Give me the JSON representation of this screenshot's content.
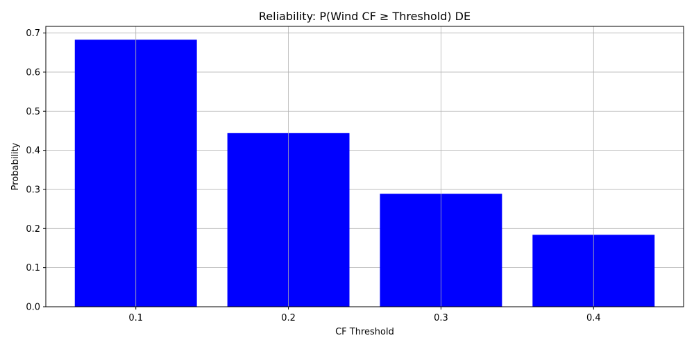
{
  "chart_data": {
    "type": "bar",
    "title": "Reliability: P(Wind CF ≥ Threshold) DE",
    "xlabel": "CF Threshold",
    "ylabel": "Probability",
    "categories": [
      "0.1",
      "0.2",
      "0.3",
      "0.4"
    ],
    "values": [
      0.683,
      0.444,
      0.289,
      0.184
    ],
    "ylim": [
      0,
      0.717
    ],
    "yticks": [
      "0.0",
      "0.1",
      "0.2",
      "0.3",
      "0.4",
      "0.5",
      "0.6",
      "0.7"
    ],
    "grid": true,
    "bar_color": "#0000ff",
    "grid_color": "#b0b0b0"
  }
}
